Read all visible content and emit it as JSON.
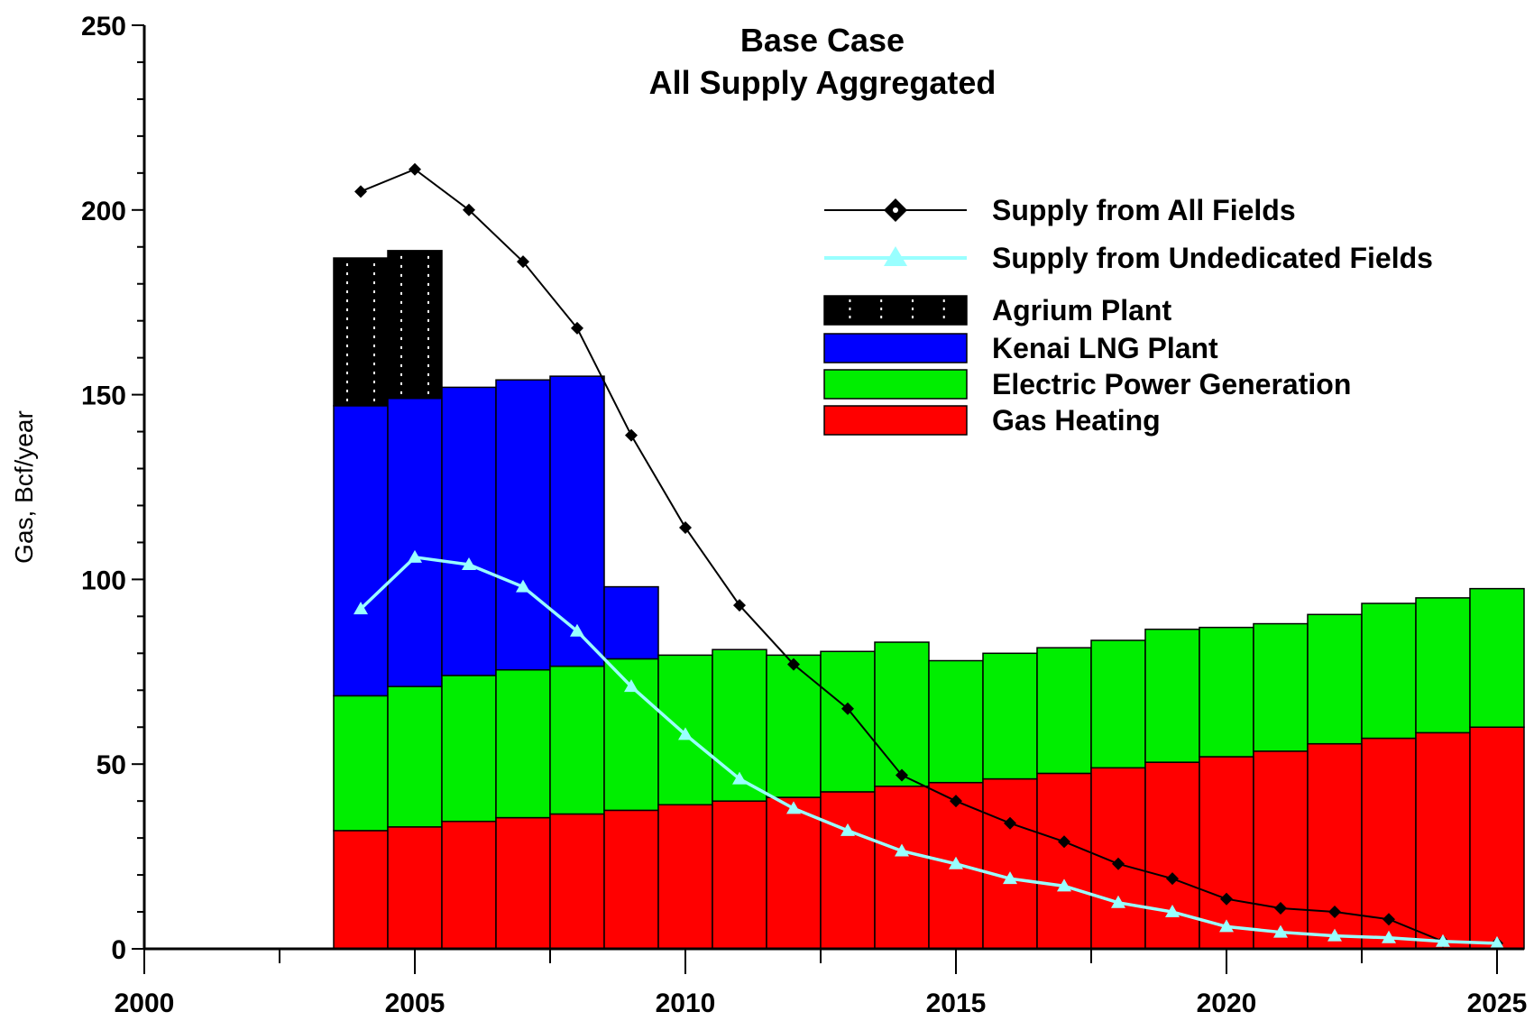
{
  "chart_data": {
    "type": "bar",
    "title": "Base Case",
    "subtitle": "All Supply Aggregated",
    "ylabel": "Gas, Bcf/year",
    "xlabel": "",
    "xlim": [
      2000,
      2025.5
    ],
    "ylim": [
      0,
      250
    ],
    "x_ticks": [
      2000,
      2005,
      2010,
      2015,
      2020,
      2025
    ],
    "y_ticks": [
      0,
      50,
      100,
      150,
      200,
      250
    ],
    "grid": false,
    "legend_position": "top-right",
    "bar_years": [
      2004,
      2005,
      2006,
      2007,
      2008,
      2009,
      2010,
      2011,
      2012,
      2013,
      2014,
      2015,
      2016,
      2017,
      2018,
      2019,
      2020,
      2021,
      2022,
      2023,
      2024,
      2025
    ],
    "stacked_series": [
      {
        "name": "Gas Heating",
        "color": "#ff0000",
        "values": [
          32,
          33,
          34.5,
          35.5,
          36.5,
          37.5,
          39,
          40,
          41,
          42.5,
          44,
          45,
          46,
          47.5,
          49,
          50.5,
          52,
          53.5,
          55.5,
          57,
          58.5,
          60
        ]
      },
      {
        "name": "Electric Power Generation",
        "color": "#00ee00",
        "values": [
          36.5,
          38,
          39.5,
          40,
          40,
          41,
          40.5,
          41,
          38.5,
          38,
          39,
          33,
          34,
          34,
          34.5,
          36,
          35,
          34.5,
          35,
          36.5,
          36.5,
          37.5
        ]
      },
      {
        "name": "Kenai LNG Plant",
        "color": "#0000ff",
        "values": [
          78.5,
          78,
          78,
          78.5,
          78.5,
          19.5,
          0,
          0,
          0,
          0,
          0,
          0,
          0,
          0,
          0,
          0,
          0,
          0,
          0,
          0,
          0,
          0
        ]
      },
      {
        "name": "Agrium Plant",
        "color": "#000000",
        "values": [
          40,
          40,
          0,
          0,
          0,
          0,
          0,
          0,
          0,
          0,
          0,
          0,
          0,
          0,
          0,
          0,
          0,
          0,
          0,
          0,
          0,
          0
        ]
      }
    ],
    "line_series": [
      {
        "name": "Supply from All Fields",
        "color": "#000000",
        "marker": "diamond",
        "x": [
          2004,
          2005,
          2006,
          2007,
          2008,
          2009,
          2010,
          2011,
          2012,
          2013,
          2014,
          2015,
          2016,
          2017,
          2018,
          2019,
          2020,
          2021,
          2022,
          2023,
          2024,
          2025
        ],
        "values": [
          205,
          211,
          200,
          186,
          168,
          139,
          114,
          93,
          77,
          65,
          47,
          40,
          34,
          29,
          23,
          19,
          13.5,
          11,
          10,
          8,
          2,
          1.5
        ]
      },
      {
        "name": "Supply from Undedicated Fields",
        "color": "#99ffff",
        "marker": "triangle",
        "x": [
          2004,
          2005,
          2006,
          2007,
          2008,
          2009,
          2010,
          2011,
          2012,
          2013,
          2014,
          2015,
          2016,
          2017,
          2018,
          2019,
          2020,
          2021,
          2022,
          2023,
          2024,
          2025
        ],
        "values": [
          92,
          106,
          104,
          98,
          86,
          71,
          58,
          46,
          38,
          32,
          26.5,
          23,
          19,
          17,
          12.5,
          10,
          6,
          4.5,
          3.5,
          3,
          2,
          1.5
        ]
      }
    ],
    "legend": [
      {
        "label": "Supply from All Fields",
        "kind": "line",
        "color": "#000000",
        "marker": "diamond"
      },
      {
        "label": "Supply from Undedicated Fields",
        "kind": "line",
        "color": "#99ffff",
        "marker": "triangle"
      },
      {
        "label": "Agrium Plant",
        "kind": "box",
        "color": "#000000"
      },
      {
        "label": "Kenai LNG Plant",
        "kind": "box",
        "color": "#0000ff"
      },
      {
        "label": "Electric Power Generation",
        "kind": "box",
        "color": "#00ee00"
      },
      {
        "label": "Gas Heating",
        "kind": "box",
        "color": "#ff0000"
      }
    ]
  }
}
